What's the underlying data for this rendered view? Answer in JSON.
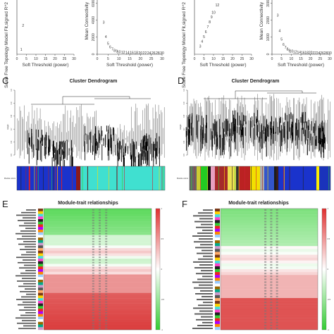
{
  "panels": {
    "C": {
      "letter": "C",
      "title": "Cluster Dendrogram",
      "ylabel": "Height",
      "colorbar_label": "Module colors"
    },
    "D": {
      "letter": "D",
      "title": "Cluster Dendrogram",
      "ylabel": "Height",
      "colorbar_label": "Module colors"
    },
    "E": {
      "letter": "E",
      "title": "Module-trait relationships"
    },
    "F": {
      "letter": "F",
      "title": "Module-trait relationships"
    }
  },
  "chart_data": [
    {
      "type": "scatter",
      "panel": "A-left",
      "xlabel": "Soft Threshold (power)",
      "ylabel": "Scale Free Topology Model Fit,signed R^2",
      "x_ticks": [
        "0",
        "5",
        "10",
        "15",
        "20",
        "25",
        "30"
      ],
      "points": [
        {
          "x": 1,
          "label": "1"
        },
        {
          "x": 2,
          "label": "2"
        }
      ],
      "xlim": [
        0,
        30
      ]
    },
    {
      "type": "scatter",
      "panel": "A-right",
      "xlabel": "Soft Threshold (power)",
      "ylabel": "Mean Connectivity",
      "x_ticks": [
        "0",
        "5",
        "10",
        "15",
        "20",
        "25",
        "30"
      ],
      "y_ticks": [
        "0",
        "2000",
        "4000",
        "6000",
        "8000"
      ],
      "x": [
        3,
        4,
        5,
        6,
        7,
        8,
        9,
        10,
        12,
        14,
        16,
        18,
        20,
        22,
        24,
        26,
        28,
        30
      ],
      "labels": [
        "3",
        "4",
        "5",
        "6",
        "7",
        "8",
        "9",
        "10",
        "12",
        "14",
        "16",
        "18",
        "20",
        "22",
        "24",
        "26",
        "28",
        "30"
      ],
      "y": [
        3600,
        1900,
        1100,
        700,
        450,
        300,
        200,
        140,
        80,
        50,
        35,
        25,
        18,
        14,
        11,
        9,
        7,
        6
      ],
      "ylim": [
        0,
        8000
      ],
      "xlim": [
        0,
        30
      ]
    },
    {
      "type": "scatter",
      "panel": "B-left",
      "xlabel": "Soft Threshold (power)",
      "ylabel": "Scale Free Topology Model Fit,signed R^2",
      "x_ticks": [
        "0",
        "5",
        "10",
        "15",
        "20",
        "25",
        "30"
      ],
      "x": [
        3,
        4,
        5,
        6,
        7,
        8,
        9,
        10,
        12
      ],
      "labels": [
        "3",
        "4",
        "5",
        "6",
        "7",
        "8",
        "9",
        "10",
        "12"
      ],
      "y": [
        0.05,
        0.15,
        0.25,
        0.35,
        0.45,
        0.55,
        0.65,
        0.75,
        0.9
      ],
      "xlim": [
        0,
        30
      ]
    },
    {
      "type": "scatter",
      "panel": "B-right",
      "xlabel": "Soft Threshold (power)",
      "ylabel": "Mean Connectivity",
      "x_ticks": [
        "0",
        "5",
        "10",
        "15",
        "20",
        "25",
        "30"
      ],
      "y_ticks": [
        "0",
        "1000",
        "2000",
        "3000",
        "4000"
      ],
      "x": [
        3,
        4,
        5,
        6,
        7,
        8,
        9,
        10,
        12,
        14,
        16,
        18,
        20,
        22,
        24,
        26,
        28,
        30
      ],
      "labels": [
        "3",
        "4",
        "5",
        "6",
        "7",
        "8",
        "9",
        "10",
        "12",
        "14",
        "16",
        "18",
        "20",
        "22",
        "24",
        "26",
        "28",
        "30"
      ],
      "y": [
        2200,
        1300,
        800,
        500,
        330,
        220,
        150,
        100,
        55,
        35,
        22,
        15,
        11,
        8,
        6,
        5,
        4,
        3
      ],
      "ylim": [
        0,
        4000
      ],
      "xlim": [
        0,
        30
      ]
    }
  ],
  "colors": {
    "red": "#e41a1c",
    "turquoise": "#40e0d0",
    "blue": "#1a33cc",
    "brown": "#a52a2a",
    "green": "#22cc22",
    "heat_pos": "#e03030",
    "heat_neg": "#33cc33"
  }
}
